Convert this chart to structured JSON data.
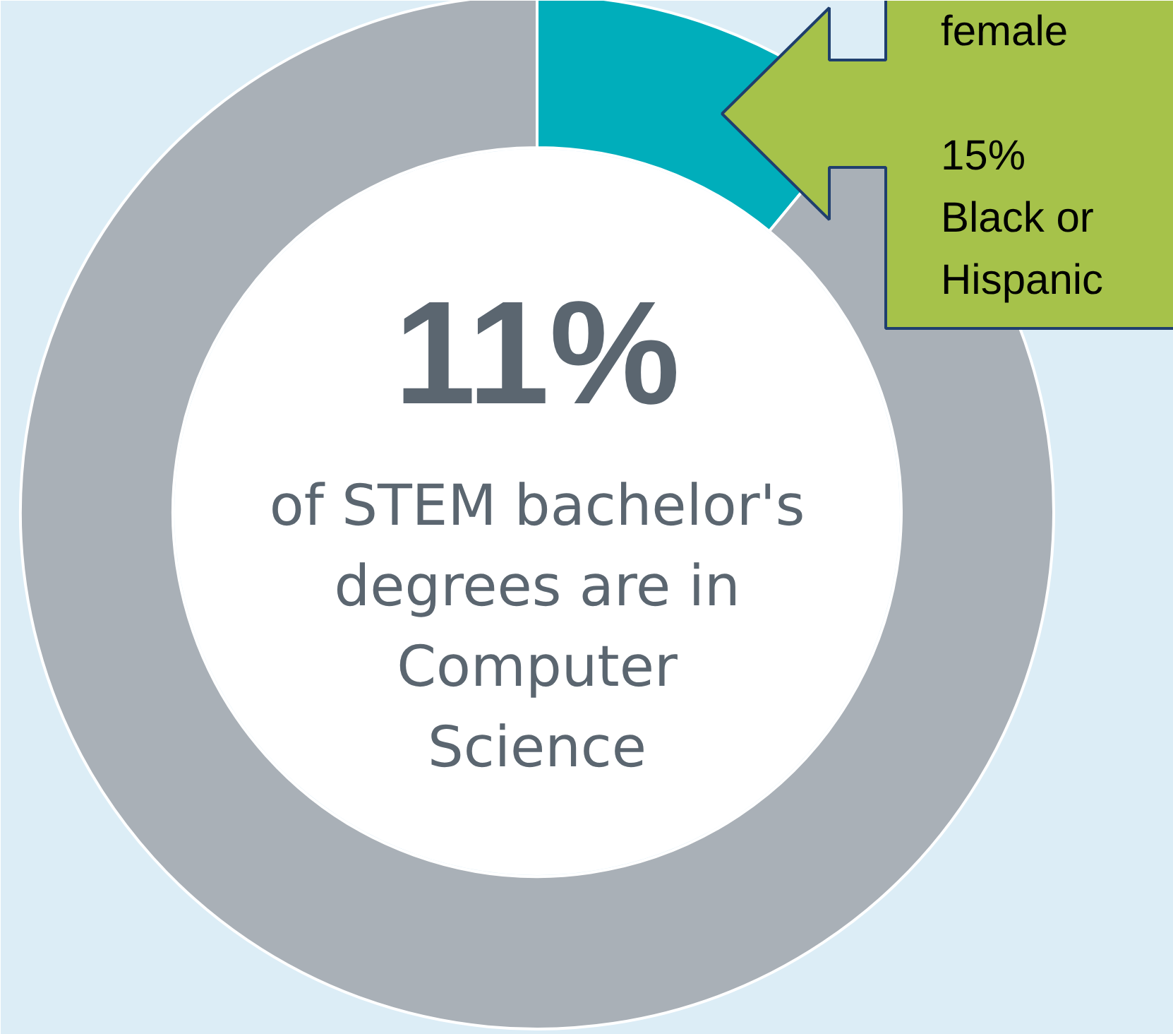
{
  "chart_data": {
    "type": "donut",
    "categories": [
      null,
      null
    ],
    "values": [
      11,
      89
    ],
    "colors": [
      "#00aebb",
      "#a9b0b7"
    ],
    "value_labels": [
      "11%",
      null
    ],
    "subtitle": "of STEM bachelor's\ndegrees are in\nComputer\nScience",
    "annotations": [
      "female\n\n15%\nBlack or\nHispanic"
    ]
  }
}
